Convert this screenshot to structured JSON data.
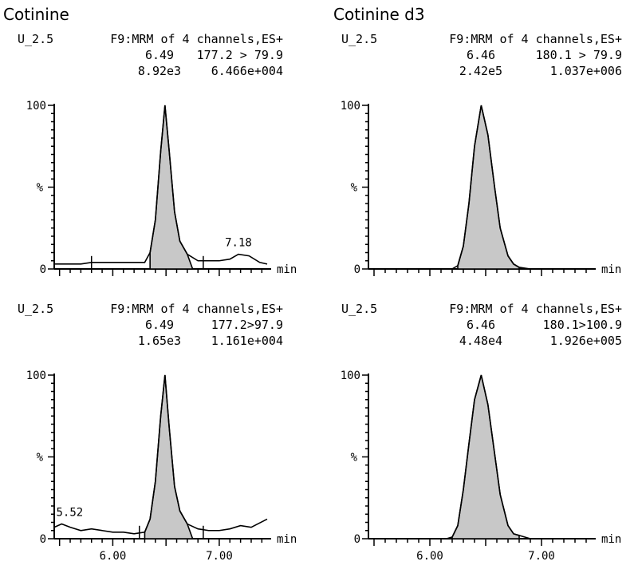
{
  "titles": {
    "left": "Cotinine",
    "right": "Cotinine d3"
  },
  "x_axis": {
    "unit_label": "min",
    "ticks": [
      "6.00",
      "7.00"
    ]
  },
  "y_axis": {
    "top_label": "100",
    "mid_label": "%",
    "bottom_label": "0"
  },
  "panels": [
    {
      "sample": "U_2.5",
      "function": "F9:MRM of 4 channels,ES+",
      "peak_rt": "6.49",
      "peak_area": "8.92e3",
      "transition": "177.2 > 79.9",
      "intensity": "6.466e+004",
      "extra_label": "7.18"
    },
    {
      "sample": "U_2.5",
      "function": "F9:MRM of 4 channels,ES+",
      "peak_rt": "6.46",
      "peak_area": "2.42e5",
      "transition": "180.1 > 79.9",
      "intensity": "1.037e+006",
      "extra_label": ""
    },
    {
      "sample": "U_2.5",
      "function": "F9:MRM of 4 channels,ES+",
      "peak_rt": "6.49",
      "peak_area": "1.65e3",
      "transition": "177.2>97.9",
      "intensity": "1.161e+004",
      "extra_label": "5.52"
    },
    {
      "sample": "U_2.5",
      "function": "F9:MRM of 4 channels,ES+",
      "peak_rt": "6.46",
      "peak_area": "4.48e4",
      "transition": "180.1>100.9",
      "intensity": "1.926e+005",
      "extra_label": ""
    }
  ],
  "chart_data": [
    {
      "type": "line",
      "title": "Cotinine",
      "xlabel": "min",
      "ylabel": "%",
      "xlim": [
        5.45,
        7.45
      ],
      "ylim": [
        0,
        100
      ],
      "series": [
        {
          "x": [
            5.45,
            5.7,
            5.8,
            5.9,
            6.0,
            6.1,
            6.2,
            6.25,
            6.3,
            6.35,
            6.4,
            6.45,
            6.49,
            6.53,
            6.58,
            6.63,
            6.7,
            6.8,
            6.9,
            7.0,
            7.1,
            7.18,
            7.28,
            7.38,
            7.45
          ],
          "y": [
            3,
            3,
            4,
            4,
            4,
            4,
            4,
            4,
            4,
            10,
            30,
            72,
            100,
            72,
            35,
            17,
            9,
            5,
            5,
            5,
            6,
            9,
            8,
            4,
            3
          ]
        }
      ]
    },
    {
      "type": "line",
      "title": "Cotinine d3",
      "xlabel": "min",
      "ylabel": "%",
      "xlim": [
        5.45,
        7.45
      ],
      "ylim": [
        0,
        100
      ],
      "series": [
        {
          "x": [
            5.45,
            5.8,
            6.0,
            6.1,
            6.2,
            6.25,
            6.3,
            6.35,
            6.4,
            6.46,
            6.52,
            6.58,
            6.63,
            6.7,
            6.75,
            6.8,
            6.9,
            7.1,
            7.45
          ],
          "y": [
            0,
            0,
            0,
            0,
            0,
            2,
            14,
            40,
            75,
            100,
            82,
            50,
            25,
            8,
            3,
            1,
            0,
            0,
            0
          ]
        }
      ]
    },
    {
      "type": "line",
      "title": "",
      "xlabel": "min",
      "ylabel": "%",
      "xlim": [
        5.45,
        7.45
      ],
      "ylim": [
        0,
        100
      ],
      "series": [
        {
          "x": [
            5.45,
            5.52,
            5.6,
            5.7,
            5.8,
            5.9,
            6.0,
            6.1,
            6.2,
            6.3,
            6.35,
            6.4,
            6.45,
            6.49,
            6.53,
            6.58,
            6.63,
            6.7,
            6.8,
            6.9,
            7.0,
            7.1,
            7.2,
            7.3,
            7.45
          ],
          "y": [
            7,
            9,
            7,
            5,
            6,
            5,
            4,
            4,
            3,
            4,
            12,
            35,
            75,
            100,
            68,
            32,
            17,
            9,
            6,
            5,
            5,
            6,
            8,
            7,
            12
          ]
        }
      ]
    },
    {
      "type": "line",
      "title": "",
      "xlabel": "min",
      "ylabel": "%",
      "xlim": [
        5.45,
        7.45
      ],
      "ylim": [
        0,
        100
      ],
      "series": [
        {
          "x": [
            5.45,
            5.8,
            6.0,
            6.1,
            6.15,
            6.2,
            6.25,
            6.3,
            6.35,
            6.4,
            6.46,
            6.52,
            6.58,
            6.63,
            6.7,
            6.75,
            6.8,
            6.9,
            7.1,
            7.45
          ],
          "y": [
            0,
            0,
            0,
            0,
            0,
            1,
            8,
            30,
            58,
            85,
            100,
            82,
            52,
            27,
            8,
            3,
            2,
            0,
            0,
            0
          ]
        }
      ]
    }
  ]
}
